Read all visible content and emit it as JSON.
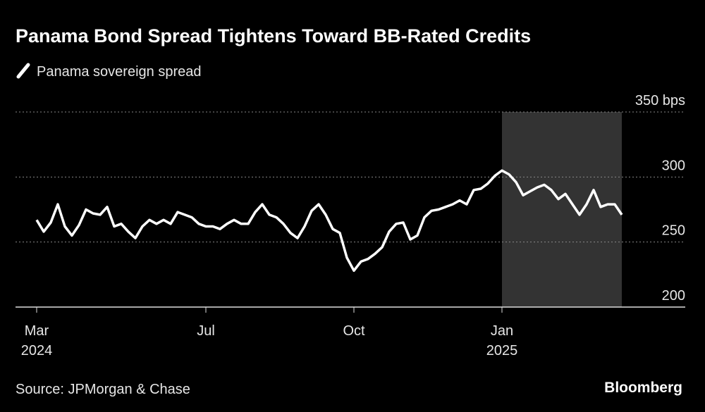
{
  "chart_data": {
    "type": "line",
    "title": "Panama Bond Spread Tightens Toward BB-Rated Credits",
    "source": "Source: JPMorgan & Chase",
    "brand": "Bloomberg",
    "categories": [
      "Mar 2024",
      null,
      null,
      null,
      null,
      null,
      null,
      null,
      null,
      null,
      null,
      null,
      null,
      null,
      null,
      null,
      null,
      null,
      null,
      null,
      null,
      null,
      null,
      null,
      "Jul",
      null,
      null,
      null,
      null,
      null,
      null,
      null,
      null,
      null,
      null,
      null,
      null,
      null,
      null,
      null,
      null,
      null,
      null,
      null,
      null,
      "Oct",
      null,
      null,
      null,
      null,
      null,
      null,
      null,
      null,
      null,
      null,
      null,
      null,
      null,
      null,
      null,
      null,
      null,
      null,
      null,
      null,
      "Jan 2025",
      null,
      null,
      null,
      null,
      null,
      null,
      null,
      null,
      null,
      null,
      null,
      null,
      null,
      null,
      null,
      null,
      null
    ],
    "series": [
      {
        "name": "Panama sovereign spread",
        "color": "#ffffff",
        "values": [
          267,
          258,
          265,
          279,
          262,
          255,
          263,
          275,
          272,
          271,
          277,
          262,
          264,
          258,
          253,
          262,
          267,
          264,
          267,
          264,
          273,
          271,
          269,
          264,
          262,
          262,
          260,
          264,
          267,
          264,
          264,
          273,
          279,
          271,
          269,
          264,
          257,
          253,
          262,
          274,
          279,
          271,
          260,
          257,
          238,
          228,
          235,
          237,
          241,
          246,
          258,
          264,
          265,
          252,
          255,
          269,
          274,
          275,
          277,
          279,
          282,
          279,
          290,
          291,
          295,
          301,
          305,
          302,
          296,
          286,
          289,
          292,
          294,
          290,
          283,
          287,
          279,
          271,
          279,
          290,
          277,
          279,
          279,
          271
        ]
      }
    ],
    "shade_from": "Jan 2025",
    "ylim": [
      200,
      350
    ],
    "yticks": [
      200,
      250,
      300,
      {
        "value": 350,
        "label": "350 bps"
      }
    ],
    "grid": true
  }
}
